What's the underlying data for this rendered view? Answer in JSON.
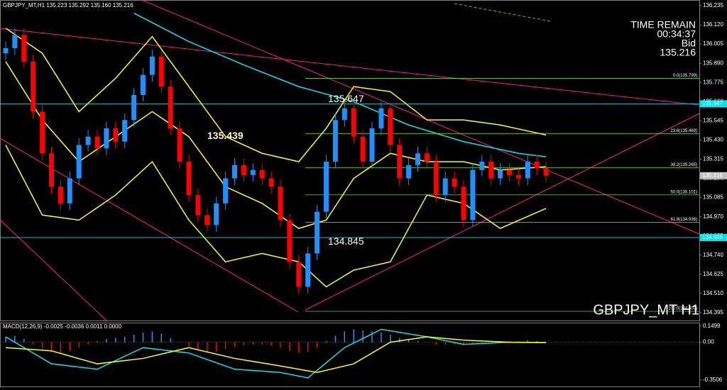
{
  "chart_data": {
    "type": "candlestick",
    "title": "GBPJPY_MT,H1  135.223 135.292 135.160 135.216",
    "symbol_label": "GBPJPY_MT H1",
    "info": [
      "TIME REMAIN",
      "00:34:37",
      "Bid",
      "135.216"
    ],
    "up_color": "#1e90ff",
    "down_color": "#ff0000",
    "ylim": [
      134.348,
      136.269
    ],
    "yticks": [
      {
        "value": 136.235,
        "label": "136.235"
      },
      {
        "value": 136.12,
        "label": "136.120"
      },
      {
        "value": 136.005,
        "label": "136.005"
      },
      {
        "value": 135.89,
        "label": "135.890"
      },
      {
        "value": 135.775,
        "label": "135.775"
      },
      {
        "value": 135.66,
        "label": "135.660"
      },
      {
        "value": 135.545,
        "label": "135.545"
      },
      {
        "value": 135.43,
        "label": "135.430"
      },
      {
        "value": 135.315,
        "label": "135.315"
      },
      {
        "value": 135.2,
        "label": "135.200"
      },
      {
        "value": 135.085,
        "label": "135.085"
      },
      {
        "value": 134.97,
        "label": "134.970"
      },
      {
        "value": 134.855,
        "label": "134.855"
      },
      {
        "value": 134.74,
        "label": "134.740"
      },
      {
        "value": 134.625,
        "label": "134.625"
      },
      {
        "value": 134.51,
        "label": "134.510"
      },
      {
        "value": 134.395,
        "label": "134.395"
      }
    ],
    "open": [
      135.95,
      135.98,
      136.06,
      135.9,
      135.6,
      135.35,
      135.15,
      135.05,
      135.2,
      135.4,
      135.45,
      135.38,
      135.5,
      135.42,
      135.55,
      135.7,
      135.82,
      135.93,
      135.75,
      135.5,
      135.3,
      135.1,
      134.98,
      134.92,
      135.05,
      135.2,
      135.28,
      135.22,
      135.25,
      135.2,
      135.15,
      134.95,
      134.7,
      134.55,
      134.75,
      135.0,
      135.3,
      135.55,
      135.62,
      135.45,
      135.3,
      135.5,
      135.62,
      135.4,
      135.2,
      135.28,
      135.35,
      135.3,
      135.1,
      135.2,
      135.15,
      134.95,
      135.25,
      135.3,
      135.2,
      135.25,
      135.22,
      135.2,
      135.3,
      135.26
    ],
    "high": [
      136.02,
      136.1,
      136.1,
      135.94,
      135.64,
      135.39,
      135.19,
      135.24,
      135.44,
      135.49,
      135.49,
      135.54,
      135.54,
      135.59,
      135.74,
      135.86,
      135.97,
      135.97,
      135.79,
      135.54,
      135.34,
      135.14,
      135.02,
      135.09,
      135.24,
      135.32,
      135.32,
      135.29,
      135.29,
      135.24,
      135.19,
      134.99,
      134.74,
      134.79,
      135.04,
      135.34,
      135.59,
      135.66,
      135.66,
      135.49,
      135.54,
      135.66,
      135.66,
      135.44,
      135.32,
      135.39,
      135.39,
      135.34,
      135.24,
      135.24,
      135.19,
      135.29,
      135.34,
      135.34,
      135.29,
      135.29,
      135.26,
      135.34,
      135.34,
      135.3
    ],
    "low": [
      135.91,
      135.94,
      135.86,
      135.56,
      135.31,
      135.11,
      135.01,
      135.01,
      135.16,
      135.36,
      135.34,
      135.34,
      135.38,
      135.38,
      135.51,
      135.66,
      135.78,
      135.71,
      135.46,
      135.26,
      135.06,
      134.94,
      134.88,
      134.88,
      135.01,
      135.16,
      135.18,
      135.18,
      135.16,
      135.11,
      134.91,
      134.66,
      134.51,
      134.51,
      134.71,
      134.96,
      135.26,
      135.51,
      135.41,
      135.26,
      135.26,
      135.46,
      135.36,
      135.16,
      135.16,
      135.24,
      135.26,
      135.06,
      135.06,
      135.11,
      134.91,
      134.91,
      135.21,
      135.16,
      135.16,
      135.18,
      135.16,
      135.16,
      135.22,
      135.176
    ],
    "close": [
      135.98,
      136.06,
      135.9,
      135.6,
      135.35,
      135.15,
      135.05,
      135.2,
      135.4,
      135.45,
      135.38,
      135.5,
      135.42,
      135.55,
      135.7,
      135.82,
      135.93,
      135.75,
      135.5,
      135.3,
      135.1,
      134.98,
      134.92,
      135.05,
      135.2,
      135.28,
      135.22,
      135.25,
      135.2,
      135.15,
      134.95,
      134.7,
      134.55,
      134.75,
      135.0,
      135.3,
      135.55,
      135.62,
      135.45,
      135.3,
      135.5,
      135.62,
      135.4,
      135.2,
      135.28,
      135.35,
      135.3,
      135.1,
      135.2,
      135.15,
      134.95,
      135.25,
      135.3,
      135.2,
      135.25,
      135.22,
      135.2,
      135.3,
      135.26,
      135.216
    ],
    "overlays": [
      {
        "color": "#00e5ee",
        "x": [
          14,
          20,
          26,
          32,
          38,
          44,
          50,
          56,
          59
        ],
        "values": [
          136.19,
          136.02,
          135.88,
          135.75,
          135.66,
          135.52,
          135.42,
          135.35,
          135.33
        ]
      },
      {
        "color": "#ffff00",
        "x": [
          0,
          4,
          8,
          12,
          16,
          20,
          24,
          28,
          32,
          35,
          38,
          42,
          46,
          50,
          54,
          59
        ],
        "values": [
          136.1,
          135.95,
          135.6,
          135.8,
          136.05,
          135.75,
          135.45,
          135.35,
          135.3,
          135.5,
          135.75,
          135.72,
          135.55,
          135.55,
          135.52,
          135.46
        ]
      },
      {
        "color": "#ffff00",
        "x": [
          0,
          4,
          8,
          12,
          16,
          20,
          24,
          28,
          32,
          35,
          38,
          42,
          46,
          50,
          54,
          59
        ],
        "values": [
          135.9,
          135.55,
          135.3,
          135.45,
          135.6,
          135.45,
          135.15,
          135.05,
          134.9,
          134.95,
          135.2,
          135.35,
          135.3,
          135.3,
          135.25,
          135.27
        ]
      },
      {
        "color": "#ffff00",
        "x": [
          0,
          4,
          8,
          12,
          16,
          20,
          24,
          28,
          32,
          35,
          38,
          42,
          46,
          50,
          54,
          59
        ],
        "values": [
          135.4,
          134.98,
          134.95,
          135.1,
          135.3,
          134.95,
          134.7,
          134.75,
          134.7,
          134.55,
          134.65,
          134.7,
          135.1,
          135.05,
          134.9,
          135.02
        ]
      }
    ],
    "annotations": [
      {
        "label": "135.647",
        "value": 135.647
      },
      {
        "label": "135.439",
        "value": 135.439
      },
      {
        "label": "134.845",
        "value": 134.845
      }
    ],
    "fib_levels": [
      {
        "value": 135.799,
        "label": "0.0(135.799)"
      },
      {
        "value": 135.469,
        "label": "23.6(135.469)"
      },
      {
        "value": 135.265,
        "label": "38.2(135.265)"
      },
      {
        "value": 135.101,
        "label": "50.0(135.101)"
      },
      {
        "value": 134.936,
        "label": "61.8(134.936)"
      },
      {
        "value": 134.403,
        "label": "100.0(134.403)"
      }
    ],
    "price_tags": [
      {
        "value": 135.647,
        "label": "135.647",
        "color": "#00e5ee"
      },
      {
        "value": 135.216,
        "label": "135.216",
        "color": "#c0c0c0"
      },
      {
        "value": 134.845,
        "label": "134.845",
        "color": "#00e5ee"
      }
    ],
    "macd": {
      "label": "MACD(12,26,9) -0.0025 -0.0036 0.0011 0.0000",
      "ylim": [
        -0.41,
        0.175
      ],
      "yticks": [
        0.1499,
        {
          "value": 0,
          "label": "0.00"
        },
        -0.3506
      ],
      "histogram": [
        0.05,
        0.06,
        0.03,
        -0.02,
        -0.06,
        -0.09,
        -0.1,
        -0.08,
        -0.05,
        -0.02,
        0.01,
        0.03,
        0.04,
        0.05,
        0.07,
        0.09,
        0.1,
        0.08,
        0.04,
        0.0,
        -0.04,
        -0.07,
        -0.09,
        -0.08,
        -0.06,
        -0.04,
        -0.03,
        -0.02,
        -0.02,
        -0.03,
        -0.05,
        -0.08,
        -0.1,
        -0.09,
        -0.05,
        0.01,
        0.06,
        0.1,
        0.12,
        0.11,
        0.1,
        0.09,
        0.07,
        0.04,
        0.02,
        0.01,
        0.0,
        -0.02,
        -0.02,
        -0.02,
        -0.03,
        -0.02,
        -0.01,
        0.0,
        0.01,
        0.01,
        0.01,
        0.02,
        0.01,
        0.0011
      ],
      "lines": [
        {
          "color": "#00e5ee",
          "x": [
            0,
            5,
            10,
            15,
            20,
            25,
            30,
            33,
            37,
            41,
            46,
            50,
            55,
            59
          ],
          "values": [
            0.05,
            -0.2,
            -0.25,
            -0.05,
            -0.1,
            -0.25,
            -0.28,
            -0.33,
            -0.05,
            0.12,
            0.05,
            -0.02,
            0.0,
            -0.0025
          ]
        },
        {
          "color": "#ffff00",
          "x": [
            0,
            5,
            10,
            15,
            20,
            25,
            30,
            34,
            38,
            42,
            46,
            50,
            55,
            59
          ],
          "values": [
            -0.05,
            -0.08,
            -0.2,
            -0.15,
            -0.05,
            -0.15,
            -0.22,
            -0.28,
            -0.2,
            0.0,
            0.05,
            0.02,
            0.0,
            -0.0036
          ]
        }
      ]
    }
  }
}
